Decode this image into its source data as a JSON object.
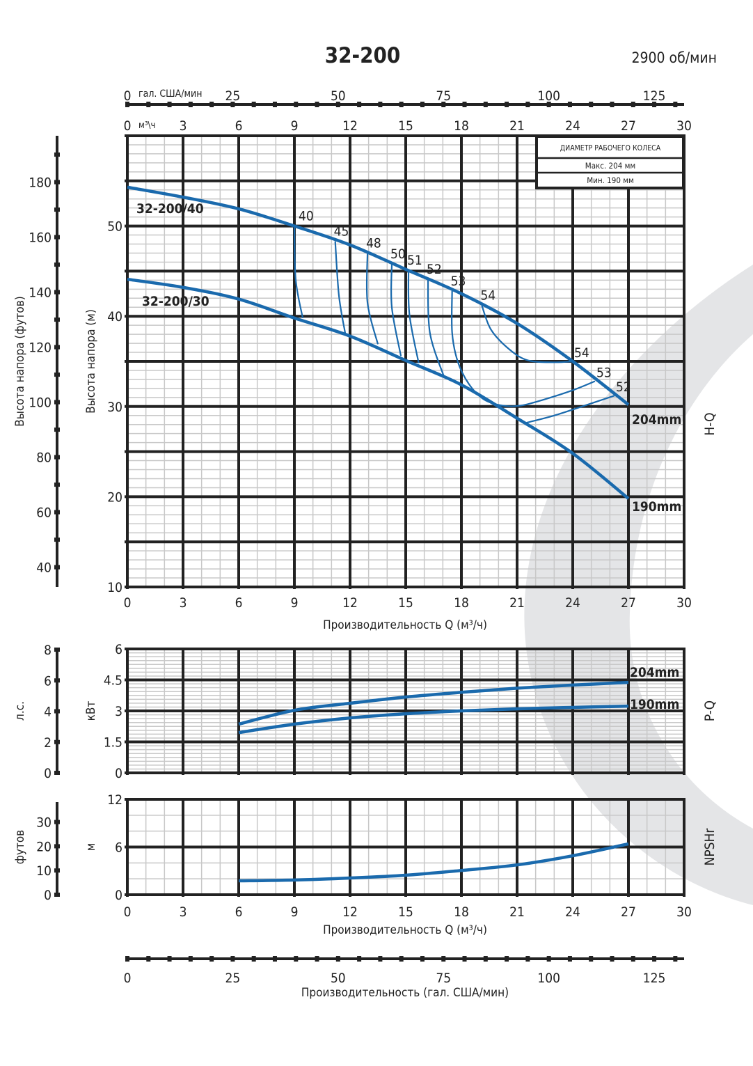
{
  "header": {
    "title": "32-200",
    "speed": "2900 об/мин"
  },
  "top_axis": {
    "gpm_unit": "гал. США/мин",
    "m3h_unit": "м³\\ч"
  },
  "legend_box": {
    "title": "ДИАМЕТР РАБОЧЕГО КОЛЕСА",
    "max": "Макс. 204 мм",
    "min": "Мин. 190 мм"
  },
  "colors": {
    "curve": "#1a6aad",
    "grid_major": "#222222",
    "grid_minor": "#c8c8c8",
    "watermark": "#e4e5e7"
  },
  "chart_data": [
    {
      "type": "line",
      "id": "H-Q",
      "panel_label": "H-Q",
      "xlabel": "Производительность Q (м³/ч)",
      "ylabel": "Высота напора (м)",
      "ylabel_secondary": "Высота напора (футов)",
      "xlim": [
        0,
        30
      ],
      "ylim": [
        10,
        60
      ],
      "x_ticks": [
        0,
        3,
        6,
        9,
        12,
        15,
        18,
        21,
        24,
        27,
        30
      ],
      "y_ticks": [
        10,
        20,
        30,
        40,
        50
      ],
      "y2_ticks": [
        40,
        60,
        80,
        100,
        120,
        140,
        160,
        180
      ],
      "grid": true,
      "series": [
        {
          "name": "204mm",
          "model_label": "32-200/40",
          "x": [
            0,
            3,
            6,
            9,
            12,
            15,
            18,
            21,
            24,
            27
          ],
          "y": [
            54.3,
            53.2,
            51.9,
            50.0,
            47.9,
            45.2,
            42.5,
            39.2,
            35.0,
            30.2
          ]
        },
        {
          "name": "190mm",
          "model_label": "32-200/30",
          "x": [
            0,
            3,
            6,
            9,
            12,
            15,
            18,
            21,
            24,
            27
          ],
          "y": [
            44.1,
            43.2,
            41.9,
            39.8,
            37.8,
            35.1,
            32.4,
            28.7,
            24.8,
            19.8
          ]
        }
      ],
      "efficiency_contours": [
        {
          "label": "40",
          "points": [
            [
              9.0,
              50.0
            ],
            [
              9.07,
              44.1
            ],
            [
              9.45,
              39.8
            ]
          ]
        },
        {
          "label": "45",
          "points": [
            [
              11.2,
              48.3
            ],
            [
              11.4,
              42.3
            ],
            [
              11.74,
              38.1
            ]
          ]
        },
        {
          "label": "48",
          "points": [
            [
              12.94,
              47.0
            ],
            [
              12.94,
              41.5
            ],
            [
              13.5,
              36.9
            ]
          ]
        },
        {
          "label": "50",
          "points": [
            [
              14.25,
              45.8
            ],
            [
              14.25,
              41.0
            ],
            [
              14.74,
              35.6
            ]
          ]
        },
        {
          "label": "51",
          "points": [
            [
              15.15,
              45.1
            ],
            [
              15.2,
              40.2
            ],
            [
              15.7,
              34.8
            ]
          ]
        },
        {
          "label": "52",
          "points": [
            [
              16.2,
              44.1
            ],
            [
              16.3,
              38.2
            ],
            [
              17.06,
              33.3
            ]
          ]
        },
        {
          "label": "53",
          "points": [
            [
              17.5,
              42.8
            ],
            [
              17.5,
              38.2
            ],
            [
              17.8,
              35.0
            ],
            [
              18.4,
              32.5
            ],
            [
              19.2,
              30.8
            ],
            [
              20.2,
              30.1
            ],
            [
              21.2,
              30.1
            ],
            [
              22.5,
              30.8
            ],
            [
              24.0,
              31.8
            ],
            [
              25.2,
              32.8
            ]
          ]
        },
        {
          "label": "54",
          "points": [
            [
              19.1,
              41.2
            ],
            [
              19.6,
              38.5
            ],
            [
              20.6,
              36.3
            ],
            [
              21.6,
              35.1
            ],
            [
              23.0,
              34.9
            ],
            [
              24.0,
              35.0
            ]
          ]
        },
        {
          "label": "52",
          "points": [
            [
              21.5,
              28.2
            ],
            [
              23.0,
              29.0
            ],
            [
              24.5,
              30.0
            ],
            [
              26.25,
              31.2
            ]
          ]
        }
      ],
      "end_labels": [
        "54",
        "53",
        "52"
      ]
    },
    {
      "type": "line",
      "id": "P-Q",
      "panel_label": "P-Q",
      "ylabel": "кВт",
      "ylabel_secondary": "л.с.",
      "xlim": [
        0,
        30
      ],
      "ylim": [
        0,
        6
      ],
      "y_ticks": [
        "0",
        "1.5",
        "3",
        "4.5",
        "6"
      ],
      "y2_ticks": [
        0,
        2,
        4,
        6,
        8
      ],
      "grid": true,
      "series": [
        {
          "name": "204mm",
          "x": [
            6,
            9,
            12,
            15,
            18,
            21,
            24,
            27
          ],
          "y": [
            2.36,
            3.03,
            3.37,
            3.67,
            3.9,
            4.1,
            4.25,
            4.38
          ]
        },
        {
          "name": "190mm",
          "x": [
            6,
            9,
            12,
            15,
            18,
            21,
            24,
            27
          ],
          "y": [
            1.95,
            2.36,
            2.66,
            2.86,
            3.0,
            3.1,
            3.17,
            3.23
          ]
        }
      ]
    },
    {
      "type": "line",
      "id": "NPSHr",
      "panel_label": "NPSHr",
      "xlabel": "Производительность Q (м³/ч)",
      "ylabel": "м",
      "ylabel_secondary": "футов",
      "xlim": [
        0,
        30
      ],
      "ylim": [
        0,
        12
      ],
      "x_ticks": [
        0,
        3,
        6,
        9,
        12,
        15,
        18,
        21,
        24,
        27,
        30
      ],
      "y_ticks": [
        0,
        6,
        12
      ],
      "y2_ticks": [
        0,
        10,
        20,
        30
      ],
      "grid": true,
      "series": [
        {
          "x": [
            6,
            9,
            12,
            15,
            18,
            21,
            24,
            27
          ],
          "y": [
            1.75,
            1.85,
            2.1,
            2.45,
            3.05,
            3.75,
            4.9,
            6.4
          ]
        }
      ]
    }
  ],
  "gpm_axis": {
    "ticks": [
      0,
      25,
      50,
      75,
      100,
      125
    ],
    "label": "Производительность (гал. США/мин)"
  }
}
